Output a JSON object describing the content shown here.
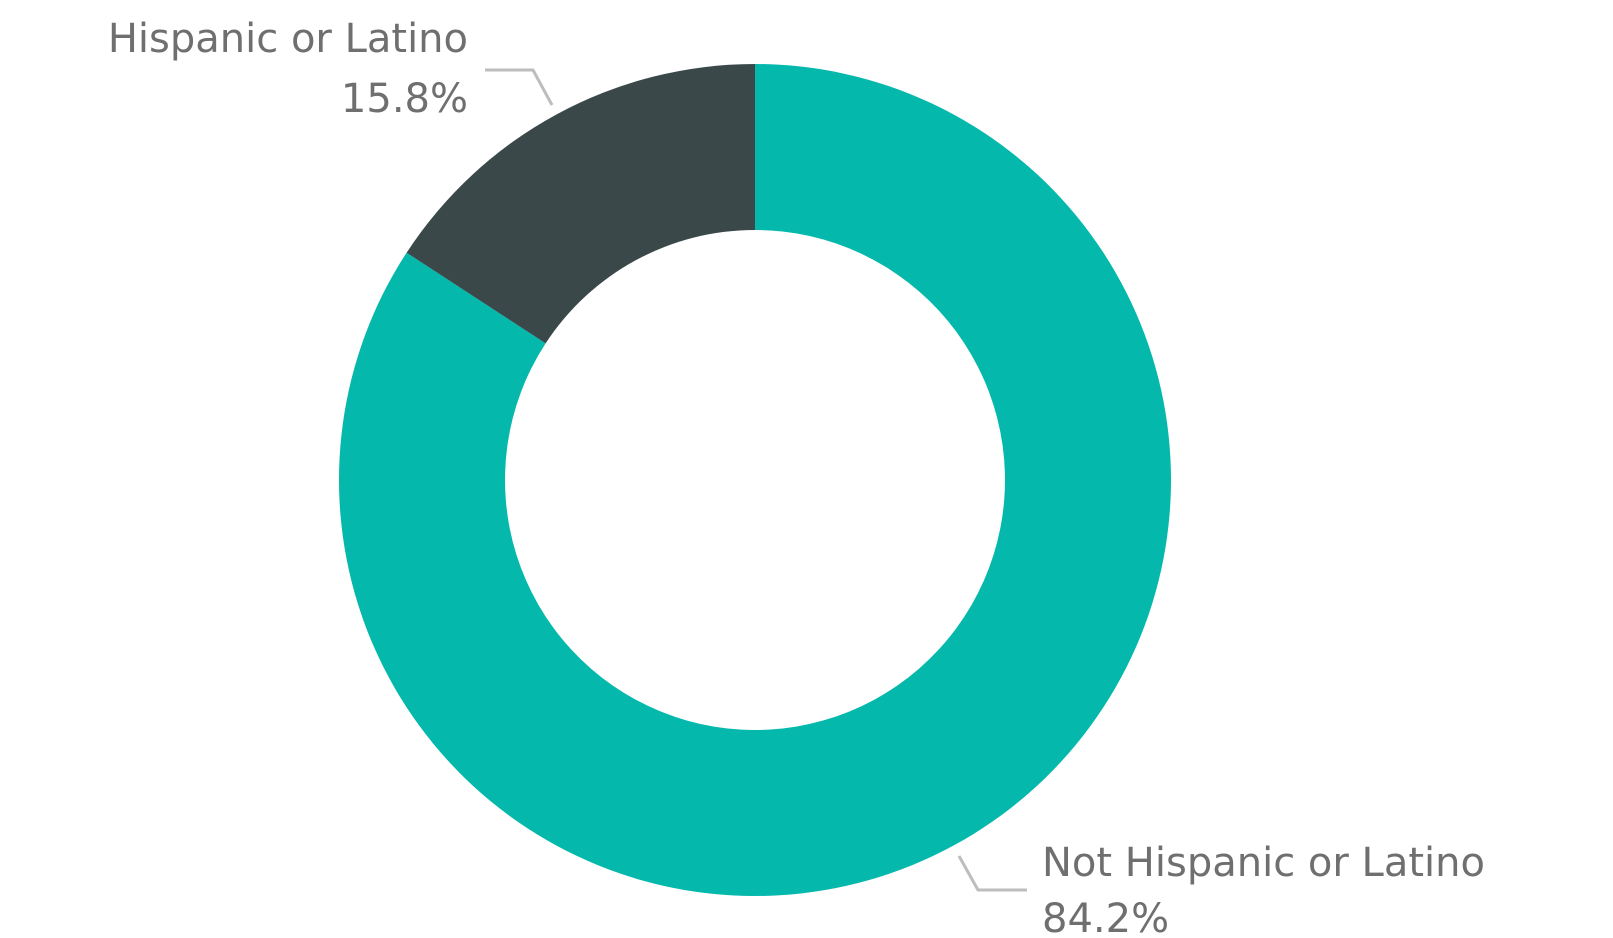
{
  "chart_data": {
    "type": "pie",
    "variant": "donut",
    "slices": [
      {
        "label": "Not Hispanic or Latino",
        "value": 84.2,
        "value_label": "84.2%",
        "color": "#04b8ac"
      },
      {
        "label": "Hispanic or Latino",
        "value": 15.8,
        "value_label": "15.8%",
        "color": "#3a484a"
      }
    ],
    "start_angle": "12 o'clock",
    "direction": "clockwise",
    "legend": "none (labels beside slices)"
  }
}
